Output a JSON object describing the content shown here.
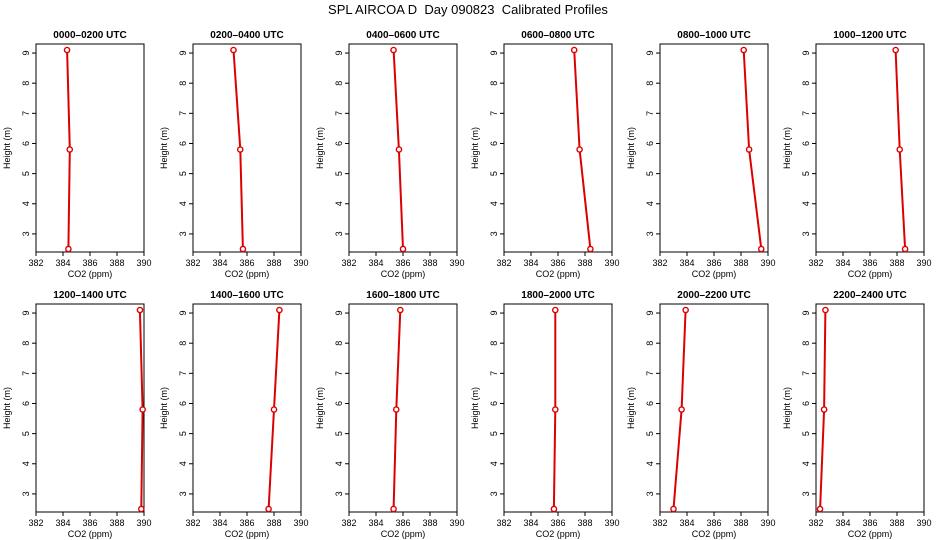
{
  "figure": {
    "title": "SPL AIRCOA D  Day 090823  Calibrated Profiles"
  },
  "style": {
    "series_color": "#dd0000",
    "axis_color": "#000000"
  },
  "chart_data": [
    {
      "type": "line",
      "title": "0000–0200 UTC",
      "xlabel": "CO2 (ppm)",
      "ylabel": "Height (m)",
      "xlim": [
        382,
        390
      ],
      "ylim": [
        2.4,
        9.3
      ],
      "xticks": [
        382,
        384,
        386,
        388,
        390
      ],
      "yticks": [
        3,
        4,
        5,
        6,
        7,
        8,
        9
      ],
      "points": [
        {
          "x": 384.3,
          "y": 9.1
        },
        {
          "x": 384.5,
          "y": 5.8
        },
        {
          "x": 384.4,
          "y": 2.5
        }
      ]
    },
    {
      "type": "line",
      "title": "0200–0400 UTC",
      "xlabel": "CO2 (ppm)",
      "ylabel": "Height (m)",
      "xlim": [
        382,
        390
      ],
      "ylim": [
        2.4,
        9.3
      ],
      "xticks": [
        382,
        384,
        386,
        388,
        390
      ],
      "yticks": [
        3,
        4,
        5,
        6,
        7,
        8,
        9
      ],
      "points": [
        {
          "x": 385.0,
          "y": 9.1
        },
        {
          "x": 385.5,
          "y": 5.8
        },
        {
          "x": 385.7,
          "y": 2.5
        }
      ]
    },
    {
      "type": "line",
      "title": "0400–0600 UTC",
      "xlabel": "CO2 (ppm)",
      "ylabel": "Height (m)",
      "xlim": [
        382,
        390
      ],
      "ylim": [
        2.4,
        9.3
      ],
      "xticks": [
        382,
        384,
        386,
        388,
        390
      ],
      "yticks": [
        3,
        4,
        5,
        6,
        7,
        8,
        9
      ],
      "points": [
        {
          "x": 385.3,
          "y": 9.1
        },
        {
          "x": 385.7,
          "y": 5.8
        },
        {
          "x": 386.0,
          "y": 2.5
        }
      ]
    },
    {
      "type": "line",
      "title": "0600–0800 UTC",
      "xlabel": "CO2 (ppm)",
      "ylabel": "Height (m)",
      "xlim": [
        382,
        390
      ],
      "ylim": [
        2.4,
        9.3
      ],
      "xticks": [
        382,
        384,
        386,
        388,
        390
      ],
      "yticks": [
        3,
        4,
        5,
        6,
        7,
        8,
        9
      ],
      "points": [
        {
          "x": 387.2,
          "y": 9.1
        },
        {
          "x": 387.6,
          "y": 5.8
        },
        {
          "x": 388.4,
          "y": 2.5
        }
      ]
    },
    {
      "type": "line",
      "title": "0800–1000 UTC",
      "xlabel": "CO2 (ppm)",
      "ylabel": "Height (m)",
      "xlim": [
        382,
        390
      ],
      "ylim": [
        2.4,
        9.3
      ],
      "xticks": [
        382,
        384,
        386,
        388,
        390
      ],
      "yticks": [
        3,
        4,
        5,
        6,
        7,
        8,
        9
      ],
      "points": [
        {
          "x": 388.2,
          "y": 9.1
        },
        {
          "x": 388.6,
          "y": 5.8
        },
        {
          "x": 389.5,
          "y": 2.5
        }
      ]
    },
    {
      "type": "line",
      "title": "1000–1200 UTC",
      "xlabel": "CO2 (ppm)",
      "ylabel": "Height (m)",
      "xlim": [
        382,
        390
      ],
      "ylim": [
        2.4,
        9.3
      ],
      "xticks": [
        382,
        384,
        386,
        388,
        390
      ],
      "yticks": [
        3,
        4,
        5,
        6,
        7,
        8,
        9
      ],
      "points": [
        {
          "x": 387.9,
          "y": 9.1
        },
        {
          "x": 388.2,
          "y": 5.8
        },
        {
          "x": 388.6,
          "y": 2.5
        }
      ]
    },
    {
      "type": "line",
      "title": "1200–1400 UTC",
      "xlabel": "CO2 (ppm)",
      "ylabel": "Height (m)",
      "xlim": [
        382,
        390
      ],
      "ylim": [
        2.4,
        9.3
      ],
      "xticks": [
        382,
        384,
        386,
        388,
        390
      ],
      "yticks": [
        3,
        4,
        5,
        6,
        7,
        8,
        9
      ],
      "points": [
        {
          "x": 389.7,
          "y": 9.1
        },
        {
          "x": 389.9,
          "y": 5.8
        },
        {
          "x": 389.8,
          "y": 2.5
        }
      ]
    },
    {
      "type": "line",
      "title": "1400–1600 UTC",
      "xlabel": "CO2 (ppm)",
      "ylabel": "Height (m)",
      "xlim": [
        382,
        390
      ],
      "ylim": [
        2.4,
        9.3
      ],
      "xticks": [
        382,
        384,
        386,
        388,
        390
      ],
      "yticks": [
        3,
        4,
        5,
        6,
        7,
        8,
        9
      ],
      "points": [
        {
          "x": 388.4,
          "y": 9.1
        },
        {
          "x": 388.0,
          "y": 5.8
        },
        {
          "x": 387.6,
          "y": 2.5
        }
      ]
    },
    {
      "type": "line",
      "title": "1600–1800 UTC",
      "xlabel": "CO2 (ppm)",
      "ylabel": "Height (m)",
      "xlim": [
        382,
        390
      ],
      "ylim": [
        2.4,
        9.3
      ],
      "xticks": [
        382,
        384,
        386,
        388,
        390
      ],
      "yticks": [
        3,
        4,
        5,
        6,
        7,
        8,
        9
      ],
      "points": [
        {
          "x": 385.8,
          "y": 9.1
        },
        {
          "x": 385.5,
          "y": 5.8
        },
        {
          "x": 385.3,
          "y": 2.5
        }
      ]
    },
    {
      "type": "line",
      "title": "1800–2000 UTC",
      "xlabel": "CO2 (ppm)",
      "ylabel": "Height (m)",
      "xlim": [
        382,
        390
      ],
      "ylim": [
        2.4,
        9.3
      ],
      "xticks": [
        382,
        384,
        386,
        388,
        390
      ],
      "yticks": [
        3,
        4,
        5,
        6,
        7,
        8,
        9
      ],
      "points": [
        {
          "x": 385.8,
          "y": 9.1
        },
        {
          "x": 385.8,
          "y": 5.8
        },
        {
          "x": 385.7,
          "y": 2.5
        }
      ]
    },
    {
      "type": "line",
      "title": "2000–2200 UTC",
      "xlabel": "CO2 (ppm)",
      "ylabel": "Height (m)",
      "xlim": [
        382,
        390
      ],
      "ylim": [
        2.4,
        9.3
      ],
      "xticks": [
        382,
        384,
        386,
        388,
        390
      ],
      "yticks": [
        3,
        4,
        5,
        6,
        7,
        8,
        9
      ],
      "points": [
        {
          "x": 383.9,
          "y": 9.1
        },
        {
          "x": 383.6,
          "y": 5.8
        },
        {
          "x": 383.0,
          "y": 2.5
        }
      ]
    },
    {
      "type": "line",
      "title": "2200–2400 UTC",
      "xlabel": "CO2 (ppm)",
      "ylabel": "Height (m)",
      "xlim": [
        382,
        390
      ],
      "ylim": [
        2.4,
        9.3
      ],
      "xticks": [
        382,
        384,
        386,
        388,
        390
      ],
      "yticks": [
        3,
        4,
        5,
        6,
        7,
        8,
        9
      ],
      "points": [
        {
          "x": 382.7,
          "y": 9.1
        },
        {
          "x": 382.6,
          "y": 5.8
        },
        {
          "x": 382.3,
          "y": 2.5
        }
      ]
    }
  ]
}
